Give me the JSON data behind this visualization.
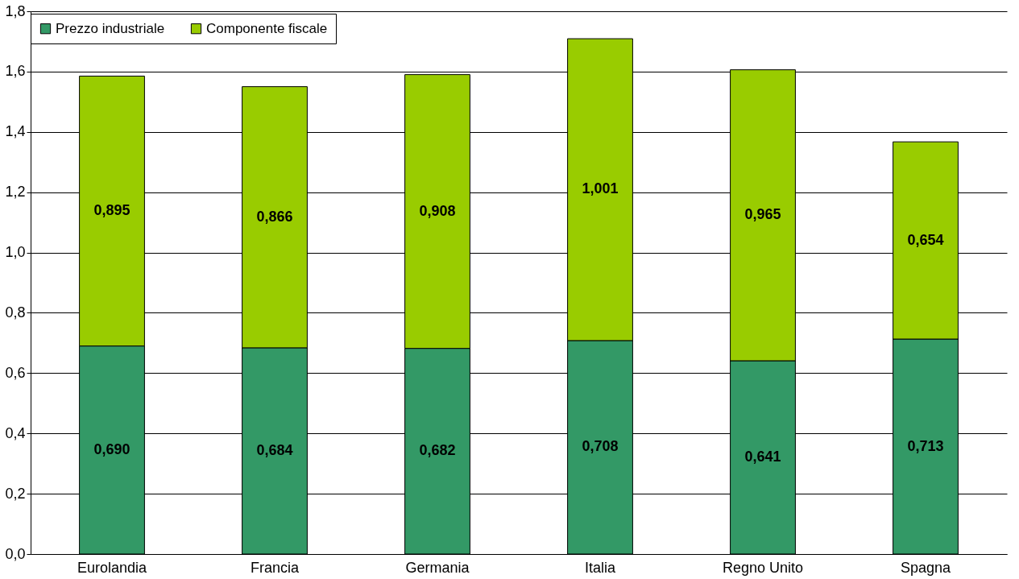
{
  "chart_data": {
    "type": "bar",
    "stacked": true,
    "categories": [
      "Eurolandia",
      "Francia",
      "Germania",
      "Italia",
      "Regno Unito",
      "Spagna"
    ],
    "series": [
      {
        "name": "Prezzo industriale",
        "color": "#339966",
        "values": [
          0.69,
          0.684,
          0.682,
          0.708,
          0.641,
          0.713
        ],
        "value_labels": [
          "0,690",
          "0,684",
          "0,682",
          "0,708",
          "0,641",
          "0,713"
        ]
      },
      {
        "name": "Componente fiscale",
        "color": "#99cc00",
        "values": [
          0.895,
          0.866,
          0.908,
          1.001,
          0.965,
          0.654
        ],
        "value_labels": [
          "0,895",
          "0,866",
          "0,908",
          "1,001",
          "0,965",
          "0,654"
        ]
      }
    ],
    "ylim": [
      0,
      1.8
    ],
    "yticks": [
      {
        "value": 0,
        "label": "0,0"
      },
      {
        "value": 0.2,
        "label": "0,2"
      },
      {
        "value": 0.4,
        "label": "0,4"
      },
      {
        "value": 0.6,
        "label": "0,6"
      },
      {
        "value": 0.8,
        "label": "0,8"
      },
      {
        "value": 1.0,
        "label": "1,0"
      },
      {
        "value": 1.2,
        "label": "1,2"
      },
      {
        "value": 1.4,
        "label": "1,4"
      },
      {
        "value": 1.6,
        "label": "1,6"
      },
      {
        "value": 1.8,
        "label": "1,8"
      }
    ],
    "grid": "y",
    "legend": "top"
  }
}
